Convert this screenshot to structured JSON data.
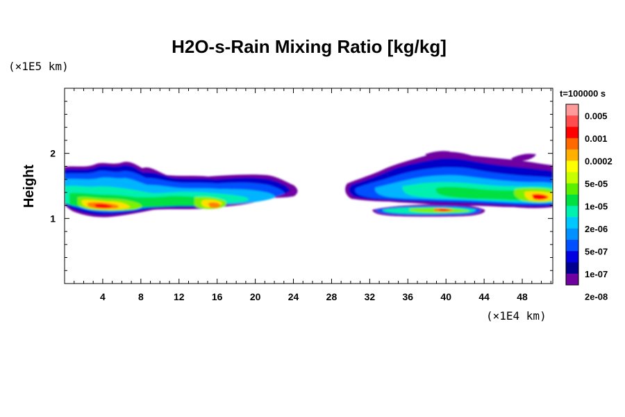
{
  "chart_data": {
    "type": "heatmap",
    "title": "H2O-s-Rain Mixing Ratio [kg/kg]",
    "ylabel": "Height",
    "y_unit": "(×1E5 km)",
    "x_unit": "(×1E4 km)",
    "time_label": "t=100000 s",
    "xlim": [
      0,
      51.2
    ],
    "ylim": [
      0,
      3
    ],
    "x_ticks": [
      "4",
      "8",
      "12",
      "16",
      "20",
      "24",
      "28",
      "32",
      "36",
      "40",
      "44",
      "48"
    ],
    "x_tick_values": [
      4,
      8,
      12,
      16,
      20,
      24,
      28,
      32,
      36,
      40,
      44,
      48
    ],
    "y_ticks": [
      "1",
      "2"
    ],
    "y_tick_values": [
      1,
      2
    ],
    "colorbar": {
      "labels": [
        "0.005",
        "0.001",
        "0.0002",
        "5e-05",
        "1e-05",
        "2e-06",
        "5e-07",
        "1e-07",
        "2e-08"
      ],
      "colors": [
        "#ff9a9a",
        "#ff4d4d",
        "#ff0000",
        "#ff6a00",
        "#ffb000",
        "#ffff00",
        "#c8ff00",
        "#5af000",
        "#00e040",
        "#00f0b0",
        "#00c8ff",
        "#0090ff",
        "#0050ff",
        "#0000e0",
        "#000090",
        "#7000a0"
      ]
    },
    "level_colors": {
      "l1": "#7000a0",
      "l2": "#0000c8",
      "l3": "#0050ff",
      "l4": "#00b4ff",
      "l5": "#00f0b0",
      "l6": "#00e040",
      "l7": "#7ef000",
      "l8": "#ffe000",
      "l9": "#ff8000",
      "l10": "#ff0000",
      "l11": "#ff9a9a"
    }
  }
}
